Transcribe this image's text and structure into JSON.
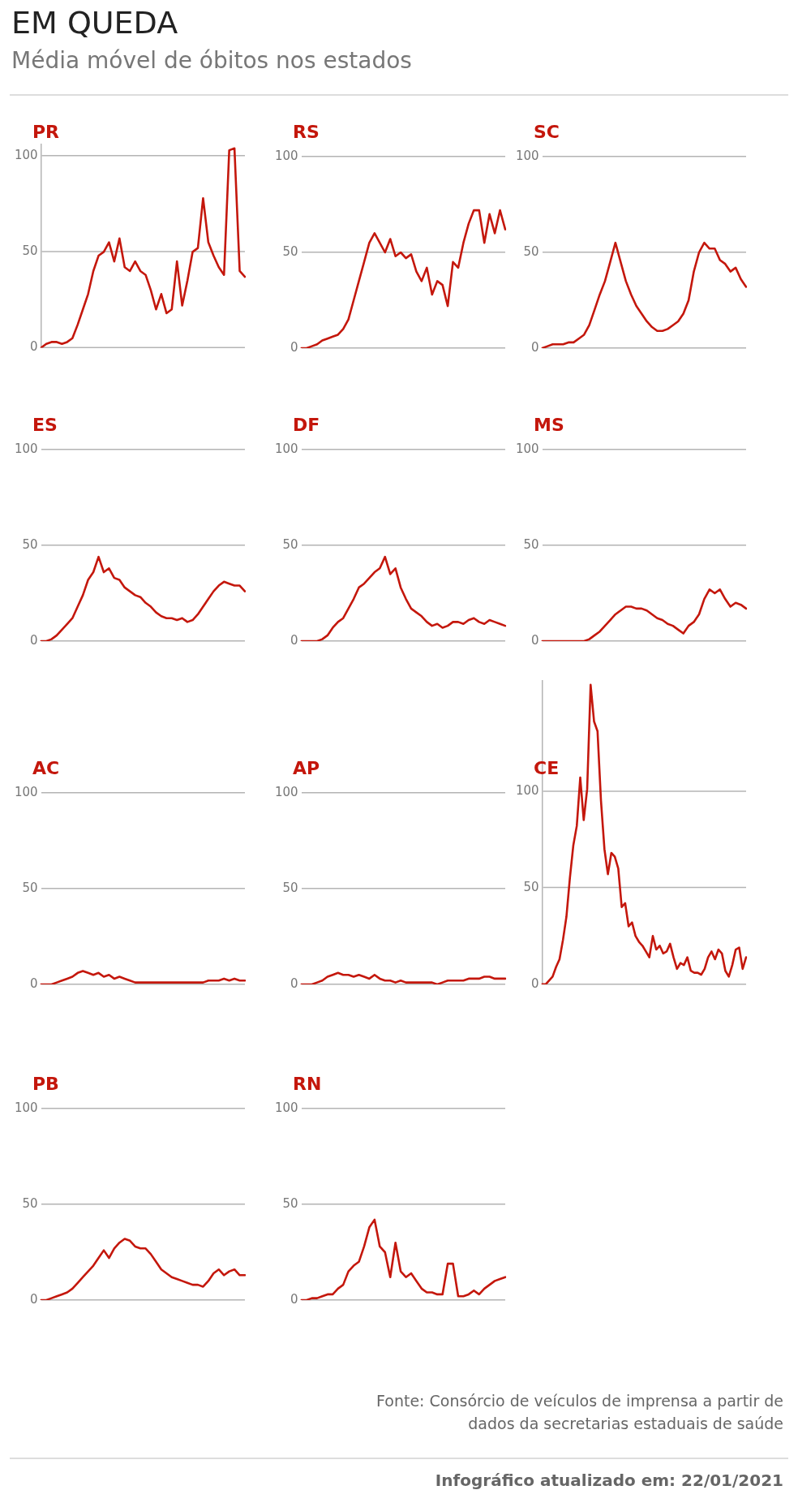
{
  "chart_data": [
    {
      "type": "other",
      "title": "EM QUEDA",
      "subtitle": "Média móvel de óbitos nos estados"
    },
    {
      "type": "line",
      "title": "PR",
      "color": "#c4170c",
      "ylim": [
        0,
        106
      ],
      "yticks": [
        0,
        50,
        100
      ],
      "grid": "y",
      "tick_labels": "y",
      "categories": [
        null,
        null,
        null,
        null,
        null,
        null,
        null,
        null,
        null,
        null,
        null,
        null,
        null,
        null,
        null,
        null,
        null,
        null,
        null,
        null,
        null,
        null,
        null,
        null,
        null,
        null,
        null,
        null,
        null,
        null,
        null,
        null,
        null,
        null,
        null,
        null,
        null,
        null,
        null,
        null
      ],
      "values": [
        0,
        2,
        3,
        3,
        2,
        3,
        5,
        12,
        20,
        28,
        40,
        48,
        50,
        55,
        45,
        57,
        42,
        40,
        45,
        40,
        38,
        30,
        20,
        28,
        18,
        20,
        45,
        22,
        35,
        50,
        52,
        78,
        55,
        48,
        42,
        38,
        103,
        104,
        40,
        37
      ]
    },
    {
      "type": "line",
      "title": "RS",
      "color": "#c4170c",
      "ylim": [
        0,
        100
      ],
      "yticks": [
        0,
        50,
        100
      ],
      "grid": "y",
      "tick_labels": "y",
      "categories": [
        null,
        null,
        null,
        null,
        null,
        null,
        null,
        null,
        null,
        null,
        null,
        null,
        null,
        null,
        null,
        null,
        null,
        null,
        null,
        null,
        null,
        null,
        null,
        null,
        null,
        null,
        null,
        null,
        null,
        null,
        null,
        null,
        null,
        null,
        null,
        null,
        null,
        null,
        null,
        null
      ],
      "values": [
        0,
        0,
        1,
        2,
        4,
        5,
        6,
        7,
        10,
        15,
        25,
        35,
        45,
        55,
        60,
        55,
        50,
        57,
        48,
        50,
        47,
        49,
        40,
        35,
        42,
        28,
        35,
        33,
        22,
        45,
        42,
        55,
        65,
        72,
        72,
        55,
        70,
        60,
        72,
        62
      ]
    },
    {
      "type": "line",
      "title": "SC",
      "color": "#c4170c",
      "ylim": [
        0,
        100
      ],
      "yticks": [
        0,
        50,
        100
      ],
      "grid": "y",
      "tick_labels": "y",
      "categories": [
        null,
        null,
        null,
        null,
        null,
        null,
        null,
        null,
        null,
        null,
        null,
        null,
        null,
        null,
        null,
        null,
        null,
        null,
        null,
        null,
        null,
        null,
        null,
        null,
        null,
        null,
        null,
        null,
        null,
        null,
        null,
        null,
        null,
        null,
        null,
        null,
        null,
        null,
        null,
        null
      ],
      "values": [
        0,
        1,
        2,
        2,
        2,
        3,
        3,
        5,
        7,
        12,
        20,
        28,
        35,
        45,
        55,
        45,
        35,
        28,
        22,
        18,
        14,
        11,
        9,
        9,
        10,
        12,
        14,
        18,
        25,
        40,
        50,
        55,
        52,
        52,
        46,
        44,
        40,
        42,
        36,
        32
      ]
    },
    {
      "type": "line",
      "title": "ES",
      "color": "#c4170c",
      "ylim": [
        0,
        100
      ],
      "yticks": [
        0,
        50,
        100
      ],
      "grid": "y",
      "tick_labels": "y",
      "categories": [
        null,
        null,
        null,
        null,
        null,
        null,
        null,
        null,
        null,
        null,
        null,
        null,
        null,
        null,
        null,
        null,
        null,
        null,
        null,
        null,
        null,
        null,
        null,
        null,
        null,
        null,
        null,
        null,
        null,
        null,
        null,
        null,
        null,
        null,
        null,
        null,
        null,
        null,
        null,
        null
      ],
      "values": [
        0,
        0,
        1,
        3,
        6,
        9,
        12,
        18,
        24,
        32,
        36,
        44,
        36,
        38,
        33,
        32,
        28,
        26,
        24,
        23,
        20,
        18,
        15,
        13,
        12,
        12,
        11,
        12,
        10,
        11,
        14,
        18,
        22,
        26,
        29,
        31,
        30,
        29,
        29,
        26
      ]
    },
    {
      "type": "line",
      "title": "DF",
      "color": "#c4170c",
      "ylim": [
        0,
        100
      ],
      "yticks": [
        0,
        50,
        100
      ],
      "grid": "y",
      "tick_labels": "y",
      "categories": [
        null,
        null,
        null,
        null,
        null,
        null,
        null,
        null,
        null,
        null,
        null,
        null,
        null,
        null,
        null,
        null,
        null,
        null,
        null,
        null,
        null,
        null,
        null,
        null,
        null,
        null,
        null,
        null,
        null,
        null,
        null,
        null,
        null,
        null,
        null,
        null,
        null,
        null,
        null,
        null
      ],
      "values": [
        0,
        0,
        0,
        0,
        1,
        3,
        7,
        10,
        12,
        17,
        22,
        28,
        30,
        33,
        36,
        38,
        44,
        35,
        38,
        28,
        22,
        17,
        15,
        13,
        10,
        8,
        9,
        7,
        8,
        10,
        10,
        9,
        11,
        12,
        10,
        9,
        11,
        10,
        9,
        8
      ]
    },
    {
      "type": "line",
      "title": "MS",
      "color": "#c4170c",
      "ylim": [
        0,
        100
      ],
      "yticks": [
        0,
        50,
        100
      ],
      "grid": "y",
      "tick_labels": "y",
      "categories": [
        null,
        null,
        null,
        null,
        null,
        null,
        null,
        null,
        null,
        null,
        null,
        null,
        null,
        null,
        null,
        null,
        null,
        null,
        null,
        null,
        null,
        null,
        null,
        null,
        null,
        null,
        null,
        null,
        null,
        null,
        null,
        null,
        null,
        null,
        null,
        null,
        null,
        null,
        null,
        null
      ],
      "values": [
        0,
        0,
        0,
        0,
        0,
        0,
        0,
        0,
        0,
        1,
        3,
        5,
        8,
        11,
        14,
        16,
        18,
        18,
        17,
        17,
        16,
        14,
        12,
        11,
        9,
        8,
        6,
        4,
        8,
        10,
        14,
        22,
        27,
        25,
        27,
        22,
        18,
        20,
        19,
        17
      ]
    },
    {
      "type": "line",
      "title": "AC",
      "color": "#c4170c",
      "ylim": [
        0,
        100
      ],
      "yticks": [
        0,
        50,
        100
      ],
      "grid": "y",
      "tick_labels": "y",
      "categories": [
        null,
        null,
        null,
        null,
        null,
        null,
        null,
        null,
        null,
        null,
        null,
        null,
        null,
        null,
        null,
        null,
        null,
        null,
        null,
        null,
        null,
        null,
        null,
        null,
        null,
        null,
        null,
        null,
        null,
        null,
        null,
        null,
        null,
        null,
        null,
        null,
        null,
        null,
        null,
        null
      ],
      "values": [
        0,
        0,
        0,
        1,
        2,
        3,
        4,
        6,
        7,
        6,
        5,
        6,
        4,
        5,
        3,
        4,
        3,
        2,
        1,
        1,
        1,
        1,
        1,
        1,
        1,
        1,
        1,
        1,
        1,
        1,
        1,
        1,
        2,
        2,
        2,
        3,
        2,
        3,
        2,
        2
      ]
    },
    {
      "type": "line",
      "title": "AP",
      "color": "#c4170c",
      "ylim": [
        0,
        100
      ],
      "yticks": [
        0,
        50,
        100
      ],
      "grid": "y",
      "tick_labels": "y",
      "categories": [
        null,
        null,
        null,
        null,
        null,
        null,
        null,
        null,
        null,
        null,
        null,
        null,
        null,
        null,
        null,
        null,
        null,
        null,
        null,
        null,
        null,
        null,
        null,
        null,
        null,
        null,
        null,
        null,
        null,
        null,
        null,
        null,
        null,
        null,
        null,
        null,
        null,
        null,
        null,
        null
      ],
      "values": [
        0,
        0,
        0,
        1,
        2,
        4,
        5,
        6,
        5,
        5,
        4,
        5,
        4,
        3,
        5,
        3,
        2,
        2,
        1,
        2,
        1,
        1,
        1,
        1,
        1,
        1,
        0,
        1,
        2,
        2,
        2,
        2,
        3,
        3,
        3,
        4,
        4,
        3,
        3,
        3
      ]
    },
    {
      "type": "line",
      "title": "CE",
      "color": "#c4170c",
      "ylim": [
        0,
        157
      ],
      "yticks": [
        0,
        50,
        100
      ],
      "grid": "y",
      "tick_labels": "y",
      "categories": [
        null,
        null,
        null,
        null,
        null,
        null,
        null,
        null,
        null,
        null,
        null,
        null,
        null,
        null,
        null,
        null,
        null,
        null,
        null,
        null,
        null,
        null,
        null,
        null,
        null,
        null,
        null,
        null,
        null,
        null,
        null,
        null,
        null,
        null,
        null,
        null,
        null,
        null,
        null,
        null,
        null,
        null,
        null,
        null,
        null,
        null,
        null,
        null,
        null,
        null,
        null,
        null,
        null,
        null,
        null,
        null,
        null,
        null,
        null,
        null
      ],
      "values": [
        0,
        0,
        2,
        4,
        9,
        13,
        23,
        35,
        55,
        72,
        82,
        107,
        85,
        101,
        155,
        136,
        131,
        95,
        70,
        57,
        68,
        66,
        60,
        40,
        42,
        30,
        32,
        25,
        22,
        20,
        17,
        14,
        25,
        18,
        20,
        16,
        17,
        21,
        14,
        8,
        11,
        10,
        14,
        7,
        6,
        6,
        5,
        8,
        14,
        17,
        13,
        18,
        16,
        7,
        4,
        10,
        18,
        19,
        8,
        14
      ]
    },
    {
      "type": "line",
      "title": "PB",
      "color": "#c4170c",
      "ylim": [
        0,
        100
      ],
      "yticks": [
        0,
        50,
        100
      ],
      "grid": "y",
      "tick_labels": "y",
      "categories": [
        null,
        null,
        null,
        null,
        null,
        null,
        null,
        null,
        null,
        null,
        null,
        null,
        null,
        null,
        null,
        null,
        null,
        null,
        null,
        null,
        null,
        null,
        null,
        null,
        null,
        null,
        null,
        null,
        null,
        null,
        null,
        null,
        null,
        null,
        null,
        null,
        null,
        null,
        null,
        null
      ],
      "values": [
        0,
        0,
        1,
        2,
        3,
        4,
        6,
        9,
        12,
        15,
        18,
        22,
        26,
        22,
        27,
        30,
        32,
        31,
        28,
        27,
        27,
        24,
        20,
        16,
        14,
        12,
        11,
        10,
        9,
        8,
        8,
        7,
        10,
        14,
        16,
        13,
        15,
        16,
        13,
        13
      ]
    },
    {
      "type": "line",
      "title": "RN",
      "color": "#c4170c",
      "ylim": [
        0,
        100
      ],
      "yticks": [
        0,
        50,
        100
      ],
      "grid": "y",
      "tick_labels": "y",
      "categories": [
        null,
        null,
        null,
        null,
        null,
        null,
        null,
        null,
        null,
        null,
        null,
        null,
        null,
        null,
        null,
        null,
        null,
        null,
        null,
        null,
        null,
        null,
        null,
        null,
        null,
        null,
        null,
        null,
        null,
        null,
        null,
        null,
        null,
        null,
        null,
        null,
        null,
        null,
        null,
        null
      ],
      "values": [
        0,
        0,
        1,
        1,
        2,
        3,
        3,
        6,
        8,
        15,
        18,
        20,
        28,
        38,
        42,
        28,
        25,
        12,
        30,
        15,
        12,
        14,
        10,
        6,
        4,
        4,
        3,
        3,
        19,
        19,
        2,
        2,
        3,
        5,
        3,
        6,
        8,
        10,
        11,
        12
      ]
    },
    {
      "type": "other",
      "annotations": [
        "Fonte: Consórcio de veículos de imprensa a partir de dados da secretarias estaduais de saúde",
        "Infográfico atualizado em: 22/01/2021"
      ]
    }
  ]
}
